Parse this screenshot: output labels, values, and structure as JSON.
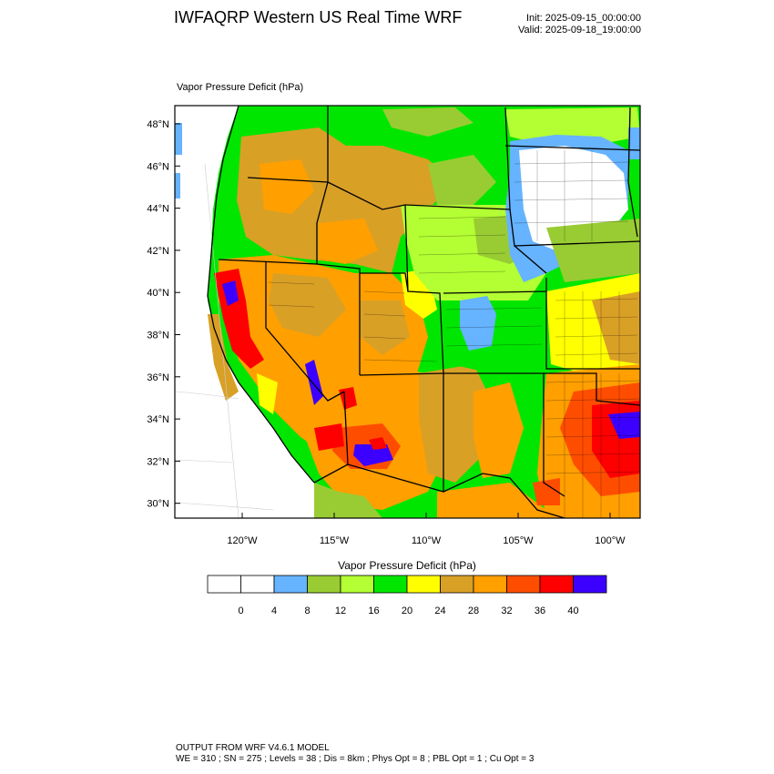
{
  "header": {
    "title": "IWFAQRP Western US Real Time WRF",
    "init": "Init: 2025-09-15_00:00:00",
    "valid": "Valid: 2025-09-18_19:00:00"
  },
  "map": {
    "field_label": "Vapor Pressure Deficit   (hPa)",
    "lat_ticks": [
      "48°N",
      "46°N",
      "44°N",
      "42°N",
      "40°N",
      "38°N",
      "36°N",
      "34°N",
      "32°N",
      "30°N"
    ],
    "lon_ticks": [
      "120°W",
      "115°W",
      "110°W",
      "105°W",
      "100°W"
    ],
    "colors": {
      "low": "#ffffff",
      "light_blue": "#66b3ff",
      "olive": "#99cc33",
      "lime": "#b3ff33",
      "green": "#00e600",
      "yellow": "#ffff00",
      "tan": "#d9a026",
      "orange": "#ff9f00",
      "red_orange": "#ff4d00",
      "red": "#ff0000",
      "blue_violet": "#3b00ff"
    }
  },
  "colorbar": {
    "label": "Vapor Pressure Deficit  (hPa)",
    "tick_labels": [
      "0",
      "4",
      "8",
      "12",
      "16",
      "20",
      "24",
      "28",
      "32",
      "36",
      "40"
    ],
    "swatches": [
      "#ffffff",
      "#ffffff",
      "#66b3ff",
      "#99cc33",
      "#b3ff33",
      "#00e600",
      "#ffff00",
      "#d9a026",
      "#ff9f00",
      "#ff4d00",
      "#ff0000",
      "#3b00ff"
    ]
  },
  "footer": {
    "line1": "OUTPUT FROM WRF V4.6.1 MODEL",
    "line2": "WE = 310 ; SN = 275 ; Levels = 38 ; Dis = 8km ; Phys Opt = 8 ; PBL Opt = 1 ; Cu Opt = 3"
  }
}
